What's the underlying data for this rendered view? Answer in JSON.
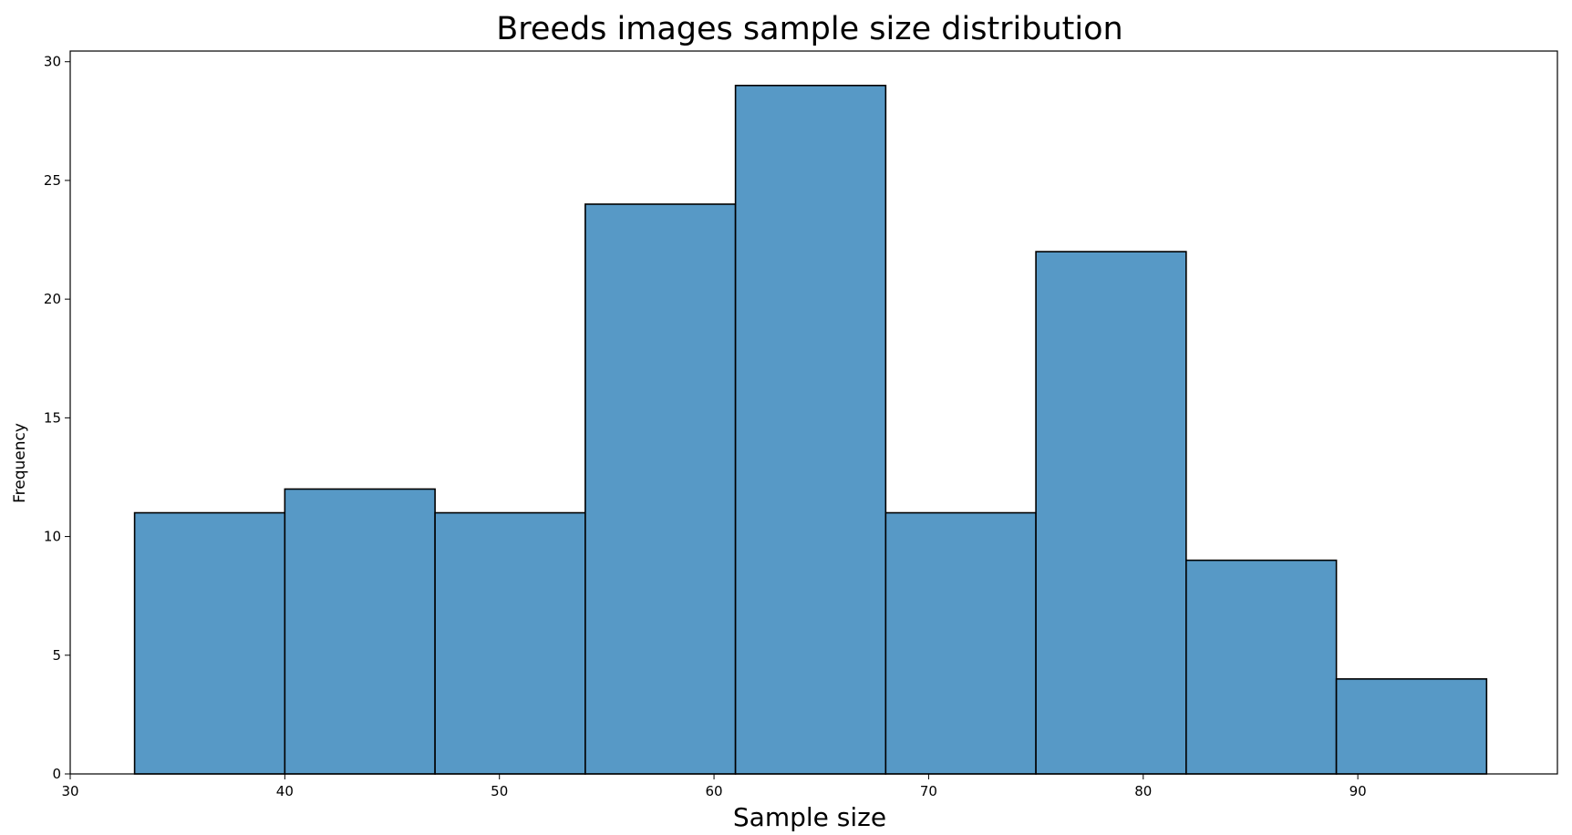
{
  "chart_data": {
    "type": "bar",
    "title": "Breeds images sample size distribution",
    "xlabel": "Sample size",
    "ylabel": "Frequency",
    "xlim": [
      30,
      99.3
    ],
    "ylim": [
      0,
      30.45
    ],
    "x_ticks": [
      30,
      40,
      50,
      60,
      70,
      80,
      90
    ],
    "y_ticks": [
      0,
      5,
      10,
      15,
      20,
      25,
      30
    ],
    "bin_edges": [
      33,
      40,
      47,
      54,
      61,
      68,
      75,
      82,
      89,
      96
    ],
    "values": [
      11,
      12,
      11,
      24,
      29,
      11,
      22,
      9,
      4
    ],
    "bar_color": "#5799c6",
    "edge_color": "#000000",
    "grid": false,
    "legend": false
  }
}
